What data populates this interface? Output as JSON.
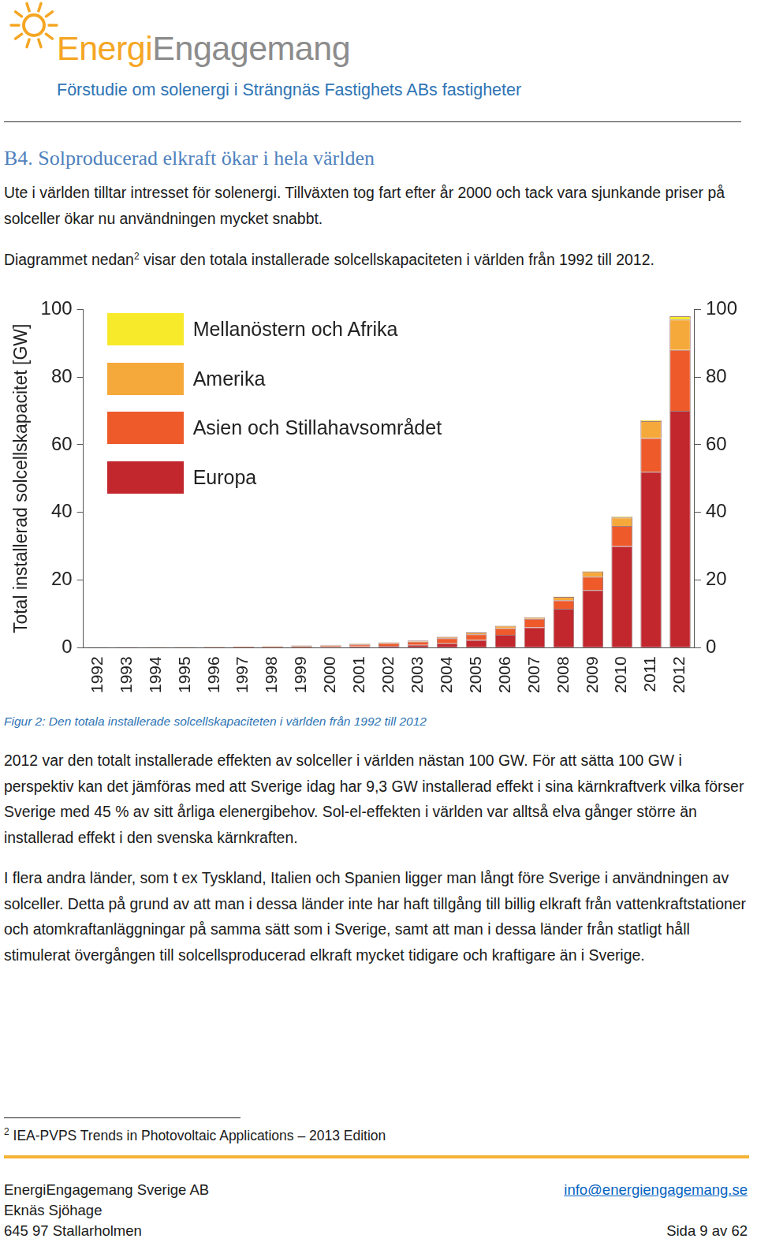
{
  "header": {
    "logo": {
      "part1": "Energi",
      "part2": "Engagemang"
    },
    "subtitle": "Förstudie om solenergi i Strängnäs Fastighets ABs fastigheter"
  },
  "heading": "B4. Solproducerad elkraft ökar i hela världen",
  "intro": "Ute i världen tilltar intresset för solenergi. Tillväxten tog fart efter år 2000 och tack vara sjunkande priser på solceller ökar nu användningen mycket snabbt.",
  "figure_intro": {
    "before": "Diagrammet nedan",
    "ref": "2",
    "after": " visar den totala installerade solcellskapaciteten i världen från 1992 till 2012."
  },
  "chart_data": {
    "type": "bar",
    "stacked": true,
    "grid": false,
    "legend": "upper left",
    "y_label": "Total installerad solcellskapacitet [GW]",
    "categories": [
      "1992",
      "1993",
      "1994",
      "1995",
      "1996",
      "1997",
      "1998",
      "1999",
      "2000",
      "2001",
      "2002",
      "2003",
      "2004",
      "2005",
      "2006",
      "2007",
      "2008",
      "2009",
      "2010",
      "2011",
      "2012"
    ],
    "series": [
      {
        "name": "Europa",
        "color": "#c1272d",
        "values": [
          0.02,
          0.03,
          0.04,
          0.05,
          0.06,
          0.08,
          0.1,
          0.15,
          0.2,
          0.35,
          0.55,
          0.8,
          1.3,
          2.3,
          3.8,
          6,
          11.5,
          17,
          30,
          52,
          70
        ]
      },
      {
        "name": "Asien och Stillahavsområdet",
        "color": "#ee5a2a",
        "values": [
          0.02,
          0.03,
          0.05,
          0.08,
          0.12,
          0.18,
          0.25,
          0.35,
          0.45,
          0.6,
          0.8,
          1.0,
          1.5,
          1.7,
          2.0,
          2.5,
          2.5,
          4,
          6,
          10,
          18
        ]
      },
      {
        "name": "Amerika",
        "color": "#f6a93b",
        "values": [
          0.03,
          0.04,
          0.05,
          0.06,
          0.07,
          0.08,
          0.1,
          0.12,
          0.15,
          0.2,
          0.25,
          0.3,
          0.4,
          0.5,
          0.7,
          0.5,
          1,
          1.5,
          2.5,
          5,
          9
        ]
      },
      {
        "name": "Mellanöstern och Afrika",
        "color": "#f7ea2b",
        "values": [
          0,
          0,
          0,
          0,
          0,
          0,
          0,
          0,
          0,
          0,
          0,
          0,
          0.05,
          0.05,
          0.05,
          0.05,
          0.1,
          0.1,
          0.3,
          0.3,
          1
        ]
      }
    ],
    "ylim": [
      0,
      100
    ],
    "yticks": [
      0,
      20,
      40,
      60,
      80,
      100
    ],
    "y2lim": [
      0,
      100
    ],
    "y2ticks": [
      0,
      20,
      40,
      60,
      80,
      100
    ]
  },
  "caption": "Figur 2: Den totala installerade solcellskapaciteten i världen från 1992 till 2012",
  "paragraphs": [
    "2012 var den totalt installerade effekten av solceller i världen nästan 100 GW. För att sätta 100 GW i perspektiv kan det jämföras med att Sverige idag har 9,3 GW installerad effekt i sina kärnkraftverk vilka förser Sverige med 45 % av sitt årliga elenergibehov. Sol-el-effekten i världen var alltså elva gånger större än installerad effekt i den svenska kärnkraften.",
    "I flera andra länder, som t ex Tyskland, Italien och Spanien ligger man långt före Sverige i användningen av solceller. Detta på grund av att man i dessa länder inte har haft tillgång till billig elkraft från vattenkraftstationer och atomkraftanläggningar på samma sätt som i Sverige, samt att man i dessa länder från statligt håll stimulerat övergången till solcellsproducerad elkraft mycket tidigare och kraftigare än i Sverige."
  ],
  "footnote": {
    "ref": "2",
    "text": "IEA-PVPS Trends in Photovoltaic Applications – 2013 Edition"
  },
  "footer": {
    "left": [
      "EnergiEngagemang Sverige AB",
      "Eknäs Sjöhage",
      "645 97 Stallarholmen"
    ],
    "email": "info@energiengagemang.se",
    "page": "Sida 9 av 62"
  }
}
